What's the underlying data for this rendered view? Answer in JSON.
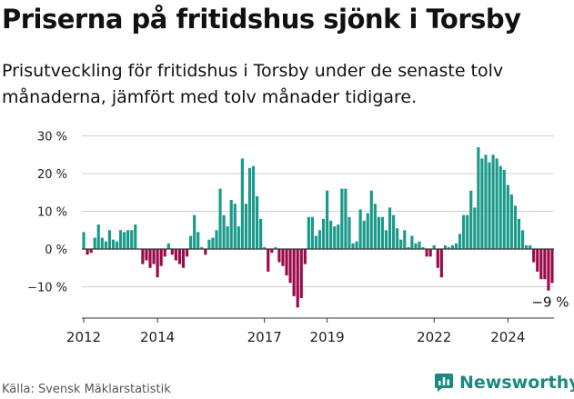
{
  "title": "Priserna på fritidshus sjönk i Torsby",
  "subtitle": "Prisutveckling för fritidshus i Torsby under de senaste tolv månaderna, jämfört med tolv månader tidigare.",
  "source": "Källa: Svensk Mäklarstatistik",
  "brand": "Newsworthy",
  "colors": {
    "positive": "#1a9a8a",
    "negative": "#9a0a4a",
    "grid": "#d0d0d0",
    "axis": "#333333",
    "brand": "#1a8a80"
  },
  "chart_data": {
    "type": "bar",
    "ylim": [
      -17,
      31
    ],
    "yticks": [
      30,
      20,
      10,
      0,
      -10
    ],
    "ytick_labels": [
      "30 %",
      "20 %",
      "10 %",
      "0 %",
      "−10 %"
    ],
    "xticks": [
      "2012",
      "2014",
      "2017",
      "2019",
      "2022",
      "2024"
    ],
    "xtick_index": [
      0,
      20,
      49,
      66,
      95,
      115
    ],
    "annotation": "−9 %",
    "values": [
      4.5,
      -1.5,
      -1,
      3,
      6.5,
      3,
      2,
      5,
      2.5,
      2,
      5,
      4.5,
      5,
      5,
      6.5,
      0,
      -4,
      -3,
      -5,
      -4,
      -7.5,
      -4.5,
      -2,
      1.5,
      -1.5,
      -3,
      -4,
      -5,
      -2,
      3.5,
      9,
      4.5,
      0.5,
      -1.5,
      2.5,
      3,
      5,
      16,
      9,
      6,
      13,
      12,
      6,
      24,
      12,
      21.5,
      22,
      14,
      8,
      0.5,
      -6,
      -1,
      0.5,
      -3.5,
      -4.5,
      -7,
      -9,
      -12.5,
      -15.5,
      -13,
      -4,
      8.5,
      8.5,
      3.5,
      5,
      8,
      15.5,
      7.5,
      6,
      6.5,
      16,
      16,
      8.5,
      1.5,
      2,
      10.5,
      7.5,
      9.5,
      15.5,
      12,
      8.5,
      8.5,
      5,
      11,
      9,
      5.5,
      2.5,
      5,
      0.5,
      3.5,
      1.5,
      2,
      0.5,
      -2,
      -2,
      1,
      -5,
      -7.5,
      1,
      0.5,
      1,
      1.5,
      4,
      9,
      9,
      15.5,
      11,
      27,
      24,
      25,
      23,
      25,
      24,
      22,
      21,
      17,
      14.5,
      11.5,
      8,
      5,
      1,
      1,
      -3.5,
      -6,
      -8,
      -8,
      -11,
      -9
    ]
  }
}
